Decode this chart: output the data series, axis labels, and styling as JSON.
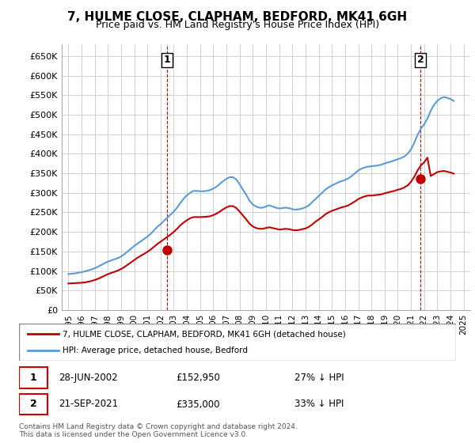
{
  "title": "7, HULME CLOSE, CLAPHAM, BEDFORD, MK41 6GH",
  "subtitle": "Price paid vs. HM Land Registry's House Price Index (HPI)",
  "ylabel_ticks": [
    "£0",
    "£50K",
    "£100K",
    "£150K",
    "£200K",
    "£250K",
    "£300K",
    "£350K",
    "£400K",
    "£450K",
    "£500K",
    "£550K",
    "£600K",
    "£650K"
  ],
  "ytick_values": [
    0,
    50000,
    100000,
    150000,
    200000,
    250000,
    300000,
    350000,
    400000,
    450000,
    500000,
    550000,
    600000,
    650000
  ],
  "ylim": [
    0,
    680000
  ],
  "hpi_color": "#5b9bd5",
  "price_color": "#c00000",
  "marker_color": "#c00000",
  "grid_color": "#d0d0d0",
  "background_color": "#ffffff",
  "legend_label_red": "7, HULME CLOSE, CLAPHAM, BEDFORD, MK41 6GH (detached house)",
  "legend_label_blue": "HPI: Average price, detached house, Bedford",
  "purchase1_label": "1",
  "purchase1_date": "28-JUN-2002",
  "purchase1_price": "£152,950",
  "purchase1_note": "27% ↓ HPI",
  "purchase2_label": "2",
  "purchase2_date": "21-SEP-2021",
  "purchase2_price": "£335,000",
  "purchase2_note": "33% ↓ HPI",
  "copyright": "Contains HM Land Registry data © Crown copyright and database right 2024.\nThis data is licensed under the Open Government Licence v3.0.",
  "purchase1_year": 2002.49,
  "purchase2_year": 2021.72,
  "purchase1_value": 152950,
  "purchase2_value": 335000,
  "hpi_years": [
    1995,
    1995.25,
    1995.5,
    1995.75,
    1996,
    1996.25,
    1996.5,
    1996.75,
    1997,
    1997.25,
    1997.5,
    1997.75,
    1998,
    1998.25,
    1998.5,
    1998.75,
    1999,
    1999.25,
    1999.5,
    1999.75,
    2000,
    2000.25,
    2000.5,
    2000.75,
    2001,
    2001.25,
    2001.5,
    2001.75,
    2002,
    2002.25,
    2002.5,
    2002.75,
    2003,
    2003.25,
    2003.5,
    2003.75,
    2004,
    2004.25,
    2004.5,
    2004.75,
    2005,
    2005.25,
    2005.5,
    2005.75,
    2006,
    2006.25,
    2006.5,
    2006.75,
    2007,
    2007.25,
    2007.5,
    2007.75,
    2008,
    2008.25,
    2008.5,
    2008.75,
    2009,
    2009.25,
    2009.5,
    2009.75,
    2010,
    2010.25,
    2010.5,
    2010.75,
    2011,
    2011.25,
    2011.5,
    2011.75,
    2012,
    2012.25,
    2012.5,
    2012.75,
    2013,
    2013.25,
    2013.5,
    2013.75,
    2014,
    2014.25,
    2014.5,
    2014.75,
    2015,
    2015.25,
    2015.5,
    2015.75,
    2016,
    2016.25,
    2016.5,
    2016.75,
    2017,
    2017.25,
    2017.5,
    2017.75,
    2018,
    2018.25,
    2018.5,
    2018.75,
    2019,
    2019.25,
    2019.5,
    2019.75,
    2020,
    2020.25,
    2020.5,
    2020.75,
    2021,
    2021.25,
    2021.5,
    2021.75,
    2022,
    2022.25,
    2022.5,
    2022.75,
    2023,
    2023.25,
    2023.5,
    2023.75,
    2024,
    2024.25
  ],
  "hpi_values": [
    92000,
    93000,
    94000,
    95500,
    97000,
    99000,
    101500,
    104000,
    107000,
    111000,
    115500,
    120000,
    124000,
    127000,
    130000,
    133000,
    137000,
    143000,
    150000,
    157000,
    164000,
    170000,
    176000,
    182000,
    188000,
    195000,
    204000,
    213000,
    220000,
    228000,
    236000,
    244000,
    252000,
    262000,
    274000,
    285000,
    294000,
    300000,
    305000,
    305000,
    304000,
    304000,
    305000,
    307000,
    311000,
    316000,
    323000,
    330000,
    336000,
    340000,
    340000,
    334000,
    322000,
    308000,
    295000,
    280000,
    270000,
    265000,
    262000,
    262000,
    265000,
    268000,
    265000,
    262000,
    260000,
    261000,
    262000,
    261000,
    258000,
    257000,
    258000,
    260000,
    263000,
    268000,
    276000,
    284000,
    292000,
    300000,
    308000,
    314000,
    319000,
    323000,
    327000,
    330000,
    333000,
    337000,
    343000,
    350000,
    357000,
    362000,
    365000,
    367000,
    368000,
    369000,
    370000,
    372000,
    375000,
    378000,
    380000,
    383000,
    386000,
    389000,
    393000,
    400000,
    411000,
    428000,
    448000,
    464000,
    475000,
    490000,
    510000,
    525000,
    535000,
    542000,
    545000,
    543000,
    540000,
    535000
  ],
  "price_years": [
    1995,
    1995.25,
    1995.5,
    1995.75,
    1996,
    1996.25,
    1996.5,
    1996.75,
    1997,
    1997.25,
    1997.5,
    1997.75,
    1998,
    1998.25,
    1998.5,
    1998.75,
    1999,
    1999.25,
    1999.5,
    1999.75,
    2000,
    2000.25,
    2000.5,
    2000.75,
    2001,
    2001.25,
    2001.5,
    2001.75,
    2002,
    2002.25,
    2002.5,
    2002.75,
    2003,
    2003.25,
    2003.5,
    2003.75,
    2004,
    2004.25,
    2004.5,
    2004.75,
    2005,
    2005.25,
    2005.5,
    2005.75,
    2006,
    2006.25,
    2006.5,
    2006.75,
    2007,
    2007.25,
    2007.5,
    2007.75,
    2008,
    2008.25,
    2008.5,
    2008.75,
    2009,
    2009.25,
    2009.5,
    2009.75,
    2010,
    2010.25,
    2010.5,
    2010.75,
    2011,
    2011.25,
    2011.5,
    2011.75,
    2012,
    2012.25,
    2012.5,
    2012.75,
    2013,
    2013.25,
    2013.5,
    2013.75,
    2014,
    2014.25,
    2014.5,
    2014.75,
    2015,
    2015.25,
    2015.5,
    2015.75,
    2016,
    2016.25,
    2016.5,
    2016.75,
    2017,
    2017.25,
    2017.5,
    2017.75,
    2018,
    2018.25,
    2018.5,
    2018.75,
    2019,
    2019.25,
    2019.5,
    2019.75,
    2020,
    2020.25,
    2020.5,
    2020.75,
    2021,
    2021.25,
    2021.5,
    2021.75,
    2022,
    2022.25,
    2022.5,
    2022.75,
    2023,
    2023.25,
    2023.5,
    2023.75,
    2024,
    2024.25
  ],
  "price_values": [
    68000,
    68500,
    69000,
    69500,
    70000,
    71000,
    72500,
    74500,
    77000,
    80000,
    84000,
    88000,
    92000,
    95000,
    98000,
    101000,
    105000,
    110000,
    116000,
    122000,
    128000,
    134000,
    139000,
    144000,
    149000,
    155000,
    162000,
    169000,
    175000,
    181000,
    187000,
    193000,
    200000,
    208000,
    217000,
    224000,
    230000,
    235000,
    238000,
    238000,
    238000,
    238500,
    239000,
    240000,
    243000,
    247000,
    252000,
    258000,
    263000,
    266000,
    266000,
    261000,
    252000,
    242000,
    232000,
    221000,
    214000,
    210000,
    208000,
    208000,
    210000,
    212000,
    210000,
    208000,
    206000,
    207000,
    208000,
    207000,
    205000,
    204000,
    205000,
    207000,
    209000,
    213000,
    219000,
    226000,
    232000,
    238000,
    245000,
    250000,
    254000,
    257000,
    260000,
    263000,
    265000,
    268000,
    273000,
    278000,
    284000,
    288000,
    291000,
    293000,
    293000,
    294000,
    295000,
    296000,
    299000,
    301000,
    303000,
    305000,
    308000,
    310000,
    314000,
    319000,
    328000,
    341000,
    357000,
    370000,
    378000,
    390000,
    343000,
    348000,
    353000,
    355000,
    356000,
    354000,
    352000,
    349000
  ]
}
